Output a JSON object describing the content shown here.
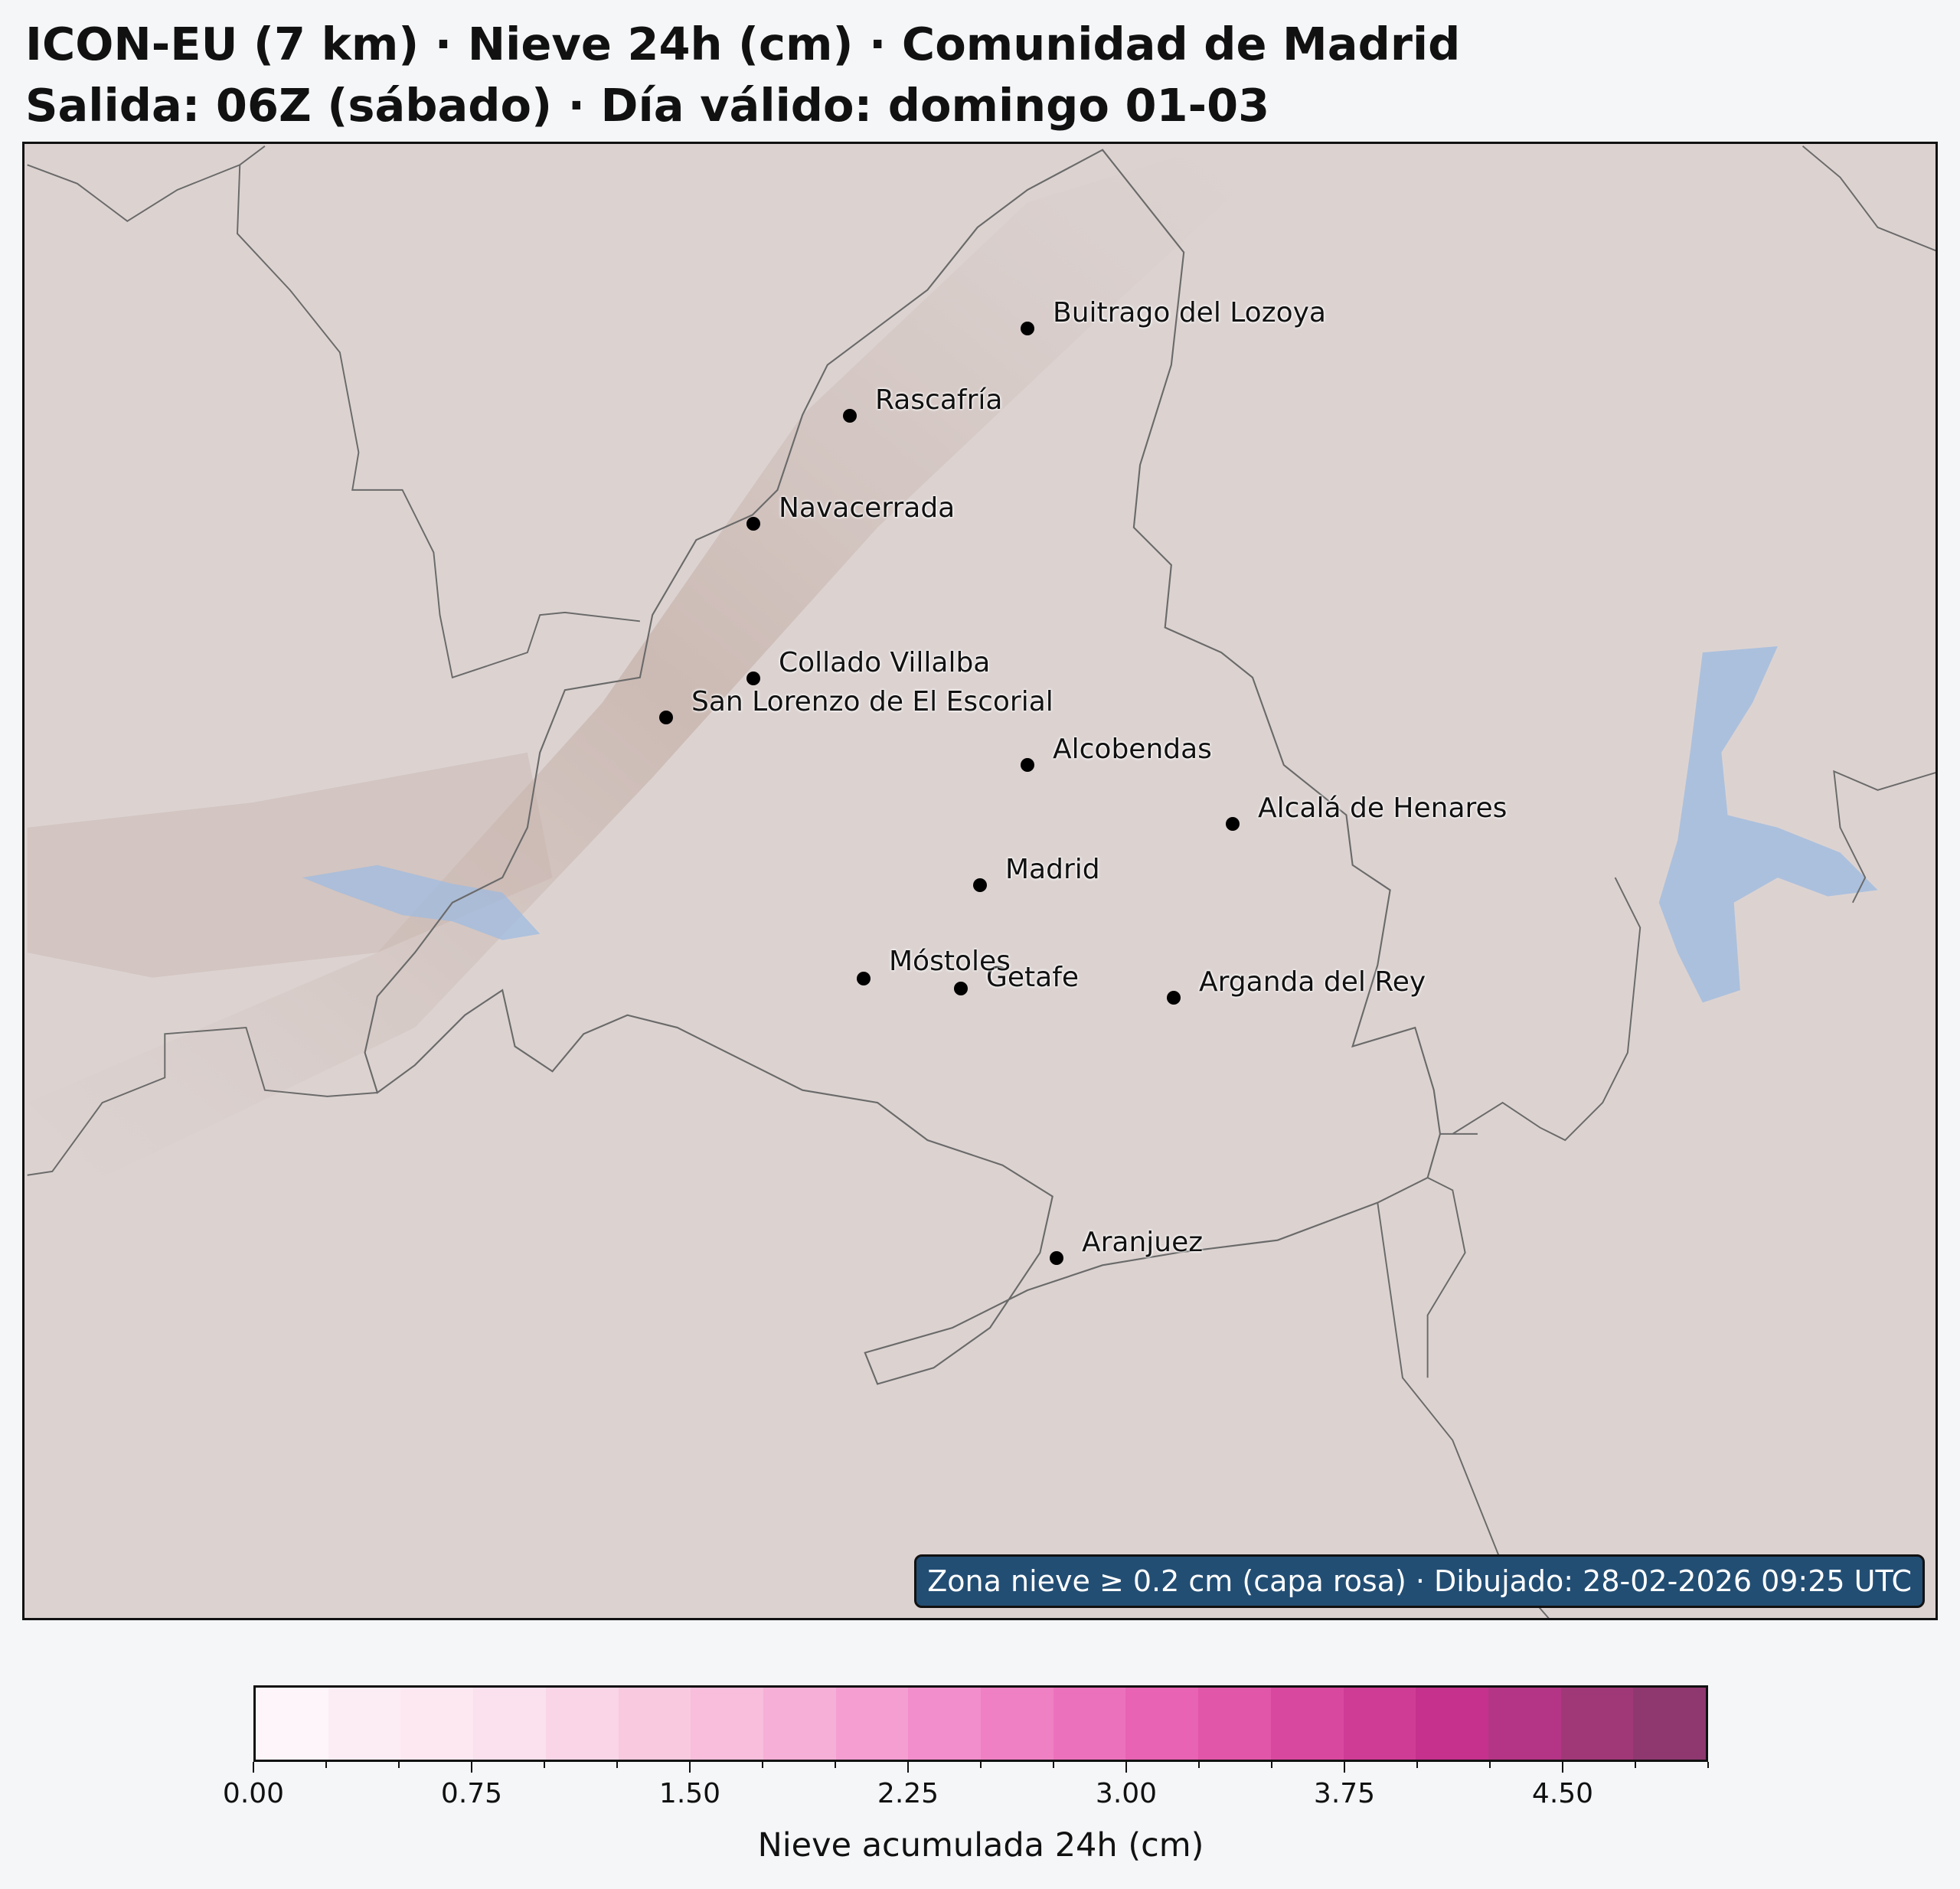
{
  "title": {
    "line1": "ICON-EU (7 km) · Nieve 24h (cm) · Comunidad de Madrid",
    "line2": "Salida: 06Z (sábado) · Día válido: domingo 01-03"
  },
  "map": {
    "region": "Comunidad de Madrid",
    "note": "Zona nieve ≥ 0.2 cm (capa rosa) · Dibujado: 28-02-2026 09:25 UTC",
    "cities": [
      {
        "name": "Buitrago del Lozoya"
      },
      {
        "name": "Rascafría"
      },
      {
        "name": "Navacerrada"
      },
      {
        "name": "Collado Villalba"
      },
      {
        "name": "San Lorenzo de El Escorial"
      },
      {
        "name": "Alcobendas"
      },
      {
        "name": "Alcalá de Henares"
      },
      {
        "name": "Madrid"
      },
      {
        "name": "Móstoles"
      },
      {
        "name": "Getafe"
      },
      {
        "name": "Arganda del Rey"
      },
      {
        "name": "Aranjuez"
      }
    ],
    "colors": {
      "terrain": "#dcd3d1",
      "border": "#6a6a6a",
      "water": "#9fbbe0",
      "note_bg": "#234e74"
    }
  },
  "colorbar": {
    "label": "Nieve acumulada 24h (cm)",
    "min": 0,
    "max": 5,
    "step": 0.25,
    "tick_labels": [
      "0.00",
      "0.75",
      "1.50",
      "2.25",
      "3.00",
      "3.75",
      "4.50"
    ],
    "colors": [
      "#fdf5f9",
      "#fcedf4",
      "#fde8f1",
      "#fbe0ed",
      "#f9d5e7",
      "#f9c9e0",
      "#f8bedc",
      "#f6afd6",
      "#f59ed2",
      "#f28ecb",
      "#ef80c3",
      "#ec71bc",
      "#e863b3",
      "#e256a9",
      "#d9489f",
      "#cf3c96",
      "#c5318d",
      "#b43585",
      "#a03877",
      "#8e386f"
    ]
  }
}
